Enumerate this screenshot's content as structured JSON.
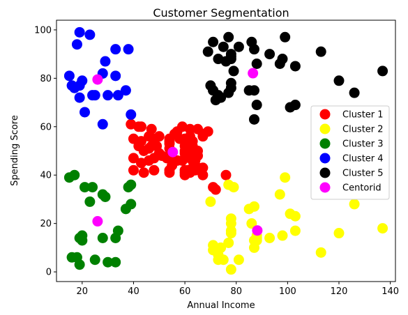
{
  "chart_data": {
    "type": "scatter",
    "title": "Customer Segmentation",
    "xlabel": "Annual Income",
    "ylabel": "Spending Score",
    "xlim": [
      10,
      142
    ],
    "ylim": [
      -4,
      104
    ],
    "xticks": [
      20,
      40,
      60,
      80,
      100,
      120,
      140
    ],
    "yticks": [
      0,
      20,
      40,
      60,
      80,
      100
    ],
    "grid": false,
    "legend_position": "center-right",
    "series": [
      {
        "name": "Cluster 1",
        "color": "#ff0000",
        "points": [
          [
            39,
            61
          ],
          [
            40,
            55
          ],
          [
            40,
            47
          ],
          [
            40,
            42
          ],
          [
            42,
            60
          ],
          [
            42,
            52
          ],
          [
            43,
            54
          ],
          [
            43,
            60
          ],
          [
            43,
            45
          ],
          [
            44,
            50
          ],
          [
            44,
            41
          ],
          [
            46,
            51
          ],
          [
            46,
            46
          ],
          [
            46,
            56
          ],
          [
            47,
            52
          ],
          [
            47,
            59
          ],
          [
            48,
            47
          ],
          [
            48,
            55
          ],
          [
            48,
            42
          ],
          [
            49,
            52
          ],
          [
            50,
            49
          ],
          [
            50,
            56
          ],
          [
            51,
            48
          ],
          [
            53,
            47
          ],
          [
            54,
            54
          ],
          [
            54,
            53
          ],
          [
            54,
            48
          ],
          [
            54,
            42
          ],
          [
            54,
            51
          ],
          [
            54,
            55
          ],
          [
            54,
            41
          ],
          [
            55,
            44
          ],
          [
            56,
            57
          ],
          [
            57,
            46
          ],
          [
            57,
            58
          ],
          [
            58,
            55
          ],
          [
            59,
            60
          ],
          [
            59,
            46
          ],
          [
            60,
            55
          ],
          [
            60,
            41
          ],
          [
            60,
            49
          ],
          [
            60,
            40
          ],
          [
            60,
            42
          ],
          [
            60,
            52
          ],
          [
            60,
            47
          ],
          [
            60,
            50
          ],
          [
            61,
            42
          ],
          [
            62,
            41
          ],
          [
            62,
            48
          ],
          [
            62,
            59
          ],
          [
            62,
            55
          ],
          [
            62,
            56
          ],
          [
            62,
            42
          ],
          [
            63,
            50
          ],
          [
            63,
            46
          ],
          [
            63,
            43
          ],
          [
            63,
            48
          ],
          [
            63,
            52
          ],
          [
            63,
            54
          ],
          [
            64,
            42
          ],
          [
            64,
            46
          ],
          [
            65,
            48
          ],
          [
            65,
            50
          ],
          [
            65,
            43
          ],
          [
            65,
            59
          ],
          [
            67,
            43
          ],
          [
            67,
            57
          ],
          [
            67,
            56
          ],
          [
            67,
            40
          ],
          [
            69,
            58
          ],
          [
            71,
            35
          ],
          [
            72,
            34
          ],
          [
            76,
            40
          ]
        ]
      },
      {
        "name": "Cluster 2",
        "color": "#ffff00",
        "points": [
          [
            70,
            29
          ],
          [
            71,
            11
          ],
          [
            71,
            9
          ],
          [
            73,
            5
          ],
          [
            73,
            7
          ],
          [
            74,
            10
          ],
          [
            75,
            5
          ],
          [
            77,
            12
          ],
          [
            77,
            36
          ],
          [
            78,
            22
          ],
          [
            78,
            17
          ],
          [
            78,
            20
          ],
          [
            78,
            16
          ],
          [
            78,
            1
          ],
          [
            79,
            35
          ],
          [
            81,
            5
          ],
          [
            85,
            26
          ],
          [
            86,
            20
          ],
          [
            87,
            27
          ],
          [
            87,
            13
          ],
          [
            87,
            10
          ],
          [
            88,
            13
          ],
          [
            88,
            15
          ],
          [
            88,
            14
          ],
          [
            93,
            14
          ],
          [
            97,
            32
          ],
          [
            98,
            15
          ],
          [
            99,
            39
          ],
          [
            101,
            24
          ],
          [
            103,
            17
          ],
          [
            103,
            23
          ],
          [
            113,
            8
          ],
          [
            120,
            16
          ],
          [
            126,
            28
          ],
          [
            137,
            18
          ]
        ]
      },
      {
        "name": "Cluster 3",
        "color": "#008000",
        "points": [
          [
            15,
            39
          ],
          [
            16,
            6
          ],
          [
            17,
            40
          ],
          [
            18,
            6
          ],
          [
            19,
            3
          ],
          [
            19,
            14
          ],
          [
            20,
            15
          ],
          [
            20,
            13
          ],
          [
            21,
            35
          ],
          [
            23,
            29
          ],
          [
            24,
            35
          ],
          [
            25,
            5
          ],
          [
            28,
            14
          ],
          [
            28,
            32
          ],
          [
            29,
            31
          ],
          [
            30,
            4
          ],
          [
            33,
            4
          ],
          [
            33,
            14
          ],
          [
            34,
            17
          ],
          [
            37,
            26
          ],
          [
            38,
            35
          ],
          [
            39,
            36
          ],
          [
            39,
            28
          ]
        ]
      },
      {
        "name": "Cluster 4",
        "color": "#0000ff",
        "points": [
          [
            15,
            81
          ],
          [
            16,
            77
          ],
          [
            17,
            76
          ],
          [
            18,
            94
          ],
          [
            19,
            99
          ],
          [
            19,
            72
          ],
          [
            19,
            77
          ],
          [
            20,
            79
          ],
          [
            21,
            66
          ],
          [
            23,
            98
          ],
          [
            24,
            73
          ],
          [
            25,
            73
          ],
          [
            28,
            82
          ],
          [
            28,
            61
          ],
          [
            29,
            87
          ],
          [
            30,
            73
          ],
          [
            33,
            81
          ],
          [
            33,
            92
          ],
          [
            34,
            73
          ],
          [
            37,
            75
          ],
          [
            38,
            92
          ],
          [
            39,
            65
          ]
        ]
      },
      {
        "name": "Cluster 5",
        "color": "#000000",
        "points": [
          [
            69,
            91
          ],
          [
            70,
            77
          ],
          [
            71,
            95
          ],
          [
            71,
            75
          ],
          [
            71,
            75
          ],
          [
            72,
            71
          ],
          [
            73,
            88
          ],
          [
            73,
            73
          ],
          [
            74,
            72
          ],
          [
            75,
            93
          ],
          [
            76,
            87
          ],
          [
            77,
            97
          ],
          [
            77,
            74
          ],
          [
            78,
            90
          ],
          [
            78,
            76
          ],
          [
            78,
            88
          ],
          [
            78,
            89
          ],
          [
            78,
            78
          ],
          [
            79,
            83
          ],
          [
            81,
            93
          ],
          [
            85,
            75
          ],
          [
            86,
            95
          ],
          [
            87,
            63
          ],
          [
            87,
            75
          ],
          [
            87,
            92
          ],
          [
            88,
            86
          ],
          [
            88,
            69
          ],
          [
            93,
            90
          ],
          [
            97,
            86
          ],
          [
            98,
            88
          ],
          [
            99,
            97
          ],
          [
            101,
            68
          ],
          [
            103,
            85
          ],
          [
            103,
            69
          ],
          [
            113,
            91
          ],
          [
            120,
            79
          ],
          [
            126,
            74
          ],
          [
            137,
            83
          ]
        ]
      },
      {
        "name": "Centorid",
        "color": "#ff00ff",
        "points": [
          [
            26,
            79.5
          ],
          [
            26,
            20.9
          ],
          [
            55.3,
            49.5
          ],
          [
            86.5,
            82.1
          ],
          [
            88.2,
            17.1
          ]
        ]
      }
    ]
  }
}
